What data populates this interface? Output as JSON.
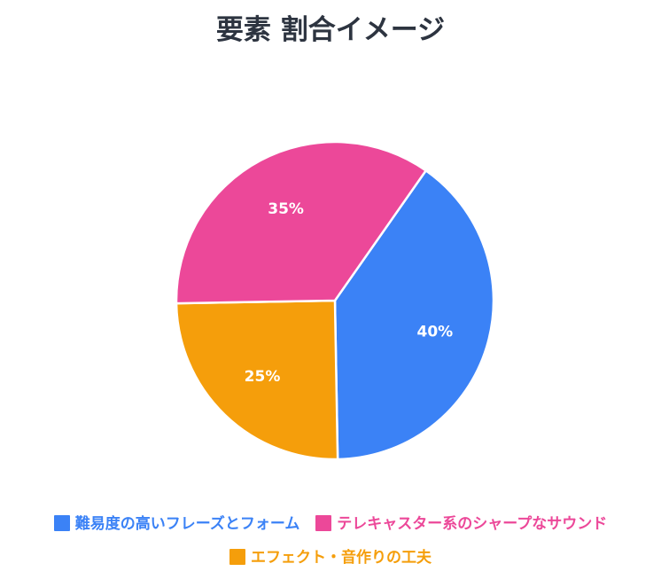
{
  "chart_data": {
    "type": "pie",
    "title": "要素 割合イメージ",
    "slices": [
      {
        "label": "難易度の高いフレーズとフォーム",
        "value": 40,
        "display": "40%",
        "color": "#3b82f6"
      },
      {
        "label": "エフェクト・音作りの工夫",
        "value": 25,
        "display": "25%",
        "color": "#f59e0b"
      },
      {
        "label": "テレキャスター系のシャープなサウンド",
        "value": 35,
        "display": "35%",
        "color": "#ec4899"
      }
    ],
    "start_angle_deg": -55,
    "legend_position": "bottom"
  }
}
